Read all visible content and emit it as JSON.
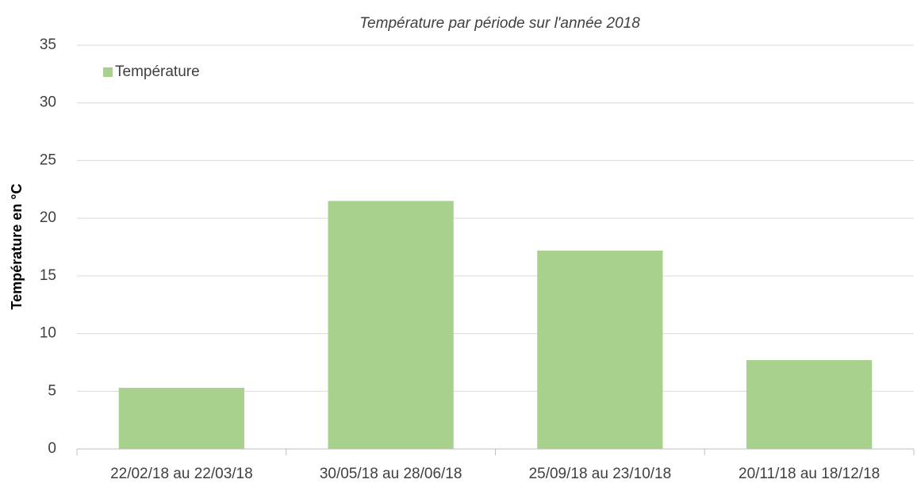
{
  "chart_data": {
    "type": "bar",
    "title": "Température par période sur l'année 2018",
    "y_label": "Température en °C",
    "categories": [
      "22/02/18 au 22/03/18",
      "30/05/18 au 28/06/18",
      "25/09/18 au 23/10/18",
      "20/11/18 au 18/12/18"
    ],
    "series": [
      {
        "name": "Température",
        "color": "#a9d18e",
        "values": [
          5.3,
          21.5,
          17.2,
          7.7
        ]
      }
    ],
    "ylim": [
      0,
      35
    ],
    "yticks": [
      0,
      5,
      10,
      15,
      20,
      25,
      30,
      35
    ],
    "grid": true,
    "legend": "top-left"
  }
}
